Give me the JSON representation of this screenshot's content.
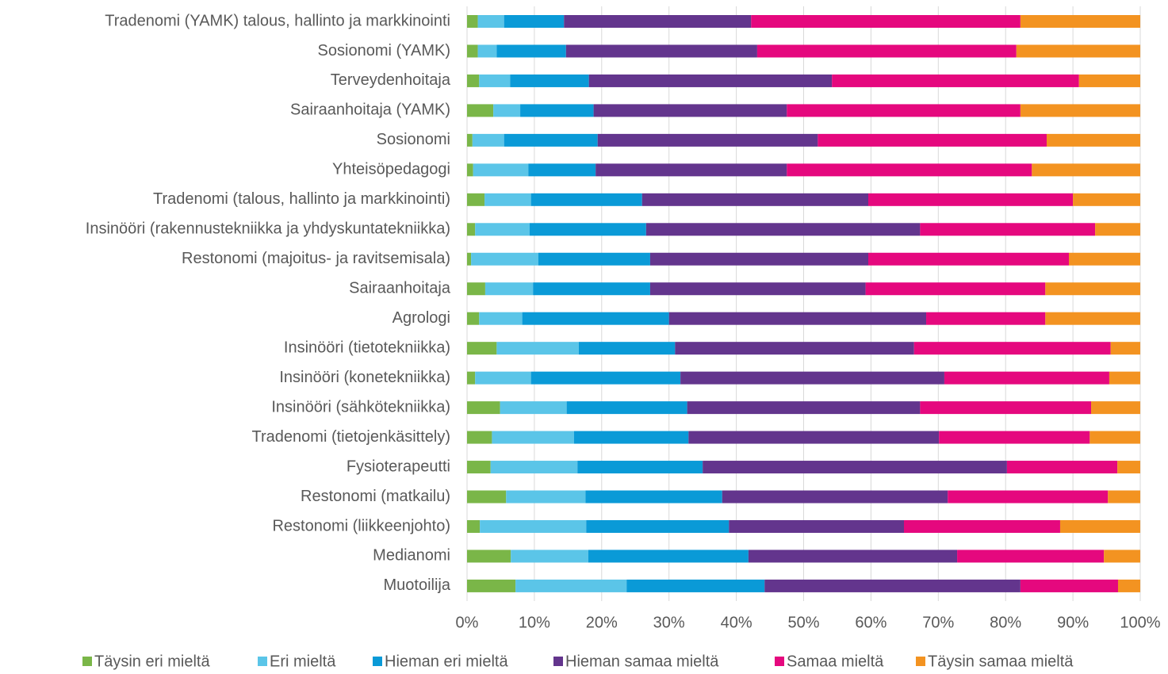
{
  "chart_data": {
    "type": "bar",
    "orientation": "horizontal",
    "stacked": true,
    "categories": [
      "Tradenomi (YAMK) talous, hallinto ja markkinointi",
      "Sosionomi (YAMK)",
      "Terveydenhoitaja",
      "Sairaanhoitaja (YAMK)",
      "Sosionomi",
      "Yhteisöpedagogi",
      "Tradenomi (talous, hallinto ja markkinointi)",
      "Insinööri (rakennustekniikka ja yhdyskuntatekniikka)",
      "Restonomi (majoitus- ja ravitsemisala)",
      "Sairaanhoitaja",
      "Agrologi",
      "Insinööri (tietotekniikka)",
      "Insinööri (konetekniikka)",
      "Insinööri  (sähkötekniikka)",
      "Tradenomi (tietojenkäsittely)",
      "Fysioterapeutti",
      "Restonomi (matkailu)",
      "Restonomi (liikkeenjohto)",
      "Medianomi",
      "Muotoilija"
    ],
    "series": [
      {
        "name": "Täysin eri mieltä",
        "color": "#7ab648",
        "values": [
          1.6,
          1.6,
          1.8,
          3.9,
          0.8,
          0.9,
          2.6,
          1.2,
          0.6,
          2.7,
          1.8,
          4.4,
          1.2,
          4.9,
          3.7,
          3.5,
          5.8,
          1.9,
          6.5,
          7.2
        ]
      },
      {
        "name": "Eri mieltä",
        "color": "#5bc5e8",
        "values": [
          3.9,
          2.8,
          4.6,
          4.0,
          4.7,
          8.2,
          6.9,
          8.1,
          10.0,
          7.1,
          6.4,
          12.2,
          8.3,
          9.9,
          12.2,
          12.9,
          11.8,
          15.8,
          11.5,
          16.5
        ]
      },
      {
        "name": "Hieman eri mieltä",
        "color": "#0a9ad7",
        "values": [
          8.9,
          10.3,
          11.7,
          10.9,
          13.9,
          10.0,
          16.5,
          17.3,
          16.6,
          17.4,
          21.8,
          14.3,
          22.2,
          17.9,
          17.0,
          18.6,
          20.3,
          21.2,
          23.8,
          20.5
        ]
      },
      {
        "name": "Hieman samaa mieltä",
        "color": "#63358d",
        "values": [
          27.8,
          28.4,
          36.1,
          28.7,
          32.7,
          28.4,
          33.6,
          40.7,
          32.4,
          32.0,
          38.2,
          35.5,
          39.2,
          34.6,
          37.2,
          45.2,
          33.5,
          26.0,
          31.0,
          38.0
        ]
      },
      {
        "name": "Samaa mieltä",
        "color": "#e5087e",
        "values": [
          40.0,
          38.5,
          36.7,
          34.7,
          34.0,
          36.4,
          30.4,
          26.0,
          29.8,
          26.7,
          17.7,
          29.2,
          24.5,
          25.4,
          22.4,
          16.4,
          23.8,
          23.2,
          21.8,
          14.5
        ]
      },
      {
        "name": "Täysin samaa mieltä",
        "color": "#f39321",
        "values": [
          17.8,
          18.4,
          9.1,
          17.8,
          13.9,
          16.1,
          10.0,
          6.7,
          10.6,
          14.1,
          14.1,
          4.4,
          4.6,
          7.3,
          7.5,
          3.4,
          4.8,
          11.9,
          5.4,
          3.3
        ]
      }
    ],
    "xlim": [
      0,
      100
    ],
    "xticks": [
      {
        "value": 0,
        "label": "0%"
      },
      {
        "value": 10,
        "label": "10%"
      },
      {
        "value": 20,
        "label": "20%"
      },
      {
        "value": 30,
        "label": "30%"
      },
      {
        "value": 40,
        "label": "40%"
      },
      {
        "value": 50,
        "label": "50%"
      },
      {
        "value": 60,
        "label": "60%"
      },
      {
        "value": 70,
        "label": "70%"
      },
      {
        "value": 80,
        "label": "80%"
      },
      {
        "value": 90,
        "label": "90%"
      },
      {
        "value": 100,
        "label": "100%"
      }
    ],
    "grid": true,
    "legend": "bottom"
  }
}
